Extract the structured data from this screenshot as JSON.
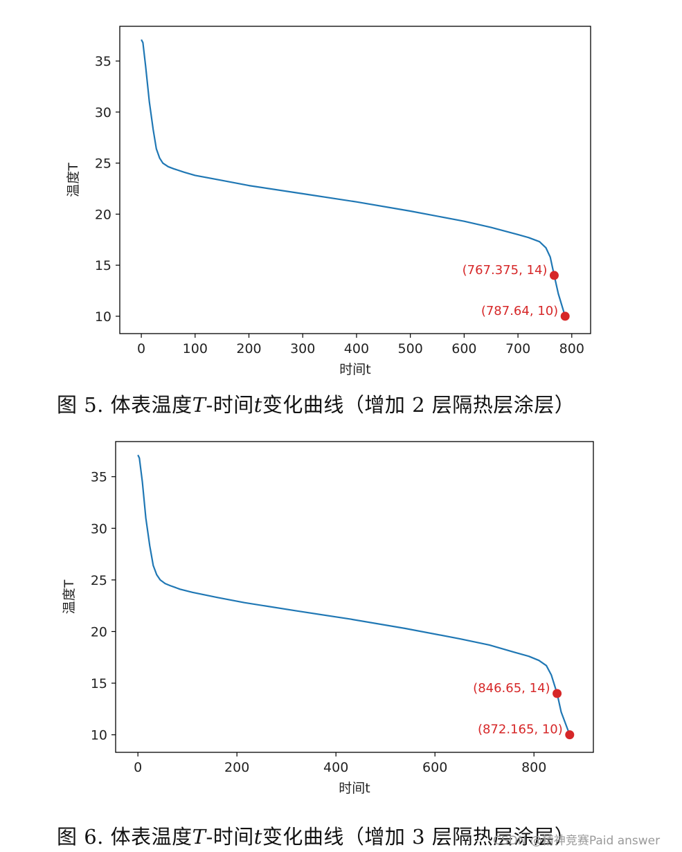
{
  "chart_data": [
    {
      "type": "line",
      "xlabel": "时间t",
      "ylabel": "温度T",
      "xlim": [
        -40,
        835
      ],
      "ylim": [
        8.3,
        38.4
      ],
      "xticks": [
        0,
        100,
        200,
        300,
        400,
        500,
        600,
        700,
        800
      ],
      "yticks": [
        10,
        15,
        20,
        25,
        30,
        35
      ],
      "series": [
        {
          "color": "#1f77b4",
          "x": [
            0,
            3,
            8,
            15,
            22,
            28,
            34,
            40,
            50,
            60,
            80,
            100,
            150,
            200,
            300,
            400,
            500,
            600,
            650,
            700,
            720,
            740,
            752,
            760,
            767.375,
            775,
            787.64
          ],
          "y": [
            37.1,
            36.8,
            34.5,
            31.0,
            28.3,
            26.4,
            25.5,
            25.0,
            24.65,
            24.45,
            24.1,
            23.8,
            23.3,
            22.8,
            22.0,
            21.2,
            20.3,
            19.3,
            18.7,
            18.0,
            17.7,
            17.3,
            16.7,
            15.8,
            14.0,
            12.2,
            10.0
          ]
        }
      ],
      "annotations": [
        {
          "x": 767.375,
          "y": 14,
          "label": "(767.375, 14)"
        },
        {
          "x": 787.64,
          "y": 10,
          "label": "(787.64, 10)"
        }
      ],
      "grid": false
    },
    {
      "type": "line",
      "xlabel": "时间t",
      "ylabel": "温度T",
      "xlim": [
        -45,
        920
      ],
      "ylim": [
        8.3,
        38.4
      ],
      "xticks": [
        0,
        200,
        400,
        600,
        800
      ],
      "yticks": [
        10,
        15,
        20,
        25,
        30,
        35
      ],
      "series": [
        {
          "color": "#1f77b4",
          "x": [
            0,
            3,
            9,
            16,
            24,
            31,
            38,
            45,
            55,
            65,
            85,
            110,
            160,
            215,
            320,
            430,
            540,
            650,
            710,
            760,
            790,
            810,
            825,
            835,
            846.65,
            855,
            872.165
          ],
          "y": [
            37.1,
            36.8,
            34.5,
            31.0,
            28.3,
            26.4,
            25.5,
            25.0,
            24.65,
            24.45,
            24.1,
            23.8,
            23.3,
            22.8,
            22.0,
            21.2,
            20.3,
            19.3,
            18.7,
            18.0,
            17.6,
            17.2,
            16.7,
            15.8,
            14.0,
            12.2,
            10.0
          ]
        }
      ],
      "annotations": [
        {
          "x": 846.65,
          "y": 14,
          "label": "(846.65, 14)"
        },
        {
          "x": 872.165,
          "y": 10,
          "label": "(872.165, 10)"
        }
      ],
      "grid": false
    }
  ],
  "captions": [
    "图 5. 体表温度𝑇-时间𝑡变化曲线（增加 2 层隔热层涂层）",
    "图 6. 体表温度𝑇-时间𝑡变化曲线（增加 3 层隔热层涂层）"
  ],
  "watermark": "CSDN @精神竞赛Paid answer"
}
